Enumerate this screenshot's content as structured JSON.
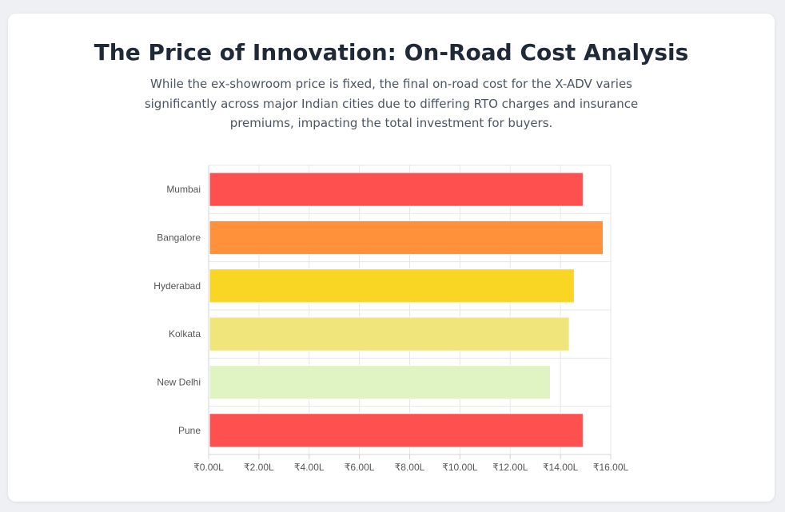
{
  "title": "The Price of Innovation: On-Road Cost Analysis",
  "subtitle": "While the ex-showroom price is fixed, the final on-road cost for the X-ADV varies significantly across major Indian cities due to differing RTO charges and insurance premiums, impacting the total investment for buyers.",
  "chart_data": {
    "type": "bar",
    "orientation": "horizontal",
    "categories": [
      "Mumbai",
      "Bangalore",
      "Hyderabad",
      "Kolkata",
      "New Delhi",
      "Pune"
    ],
    "values": [
      14.9,
      15.7,
      14.55,
      14.35,
      13.6,
      14.9
    ],
    "colors": [
      "#ff5050",
      "#ff913a",
      "#f9d624",
      "#efe57a",
      "#e0f4c3",
      "#ff5050"
    ],
    "xlim": [
      0,
      16
    ],
    "xticks": [
      0,
      2,
      4,
      6,
      8,
      10,
      12,
      14,
      16
    ],
    "xtick_labels": [
      "₹0.00L",
      "₹2.00L",
      "₹4.00L",
      "₹6.00L",
      "₹8.00L",
      "₹10.00L",
      "₹12.00L",
      "₹14.00L",
      "₹16.00L"
    ],
    "grid": true,
    "legend": "none"
  }
}
